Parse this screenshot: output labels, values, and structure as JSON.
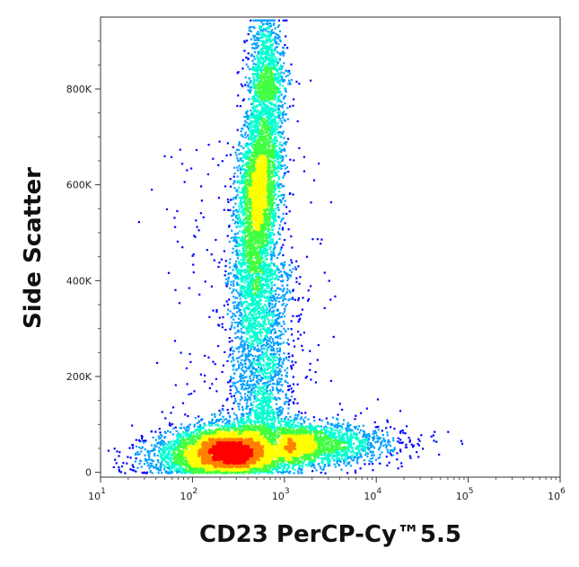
{
  "chart_data": {
    "type": "scatter",
    "subtype": "flow-cytometry density dot plot",
    "xlabel": "CD23 PerCP-Cy™5.5",
    "ylabel": "Side Scatter",
    "x_scale": "log",
    "xlim": [
      10,
      1000000
    ],
    "ylim": [
      -10000,
      950000
    ],
    "x_ticks": [
      {
        "value": 10,
        "base": "10",
        "exp": "1"
      },
      {
        "value": 100,
        "base": "10",
        "exp": "2"
      },
      {
        "value": 1000,
        "base": "10",
        "exp": "3"
      },
      {
        "value": 10000,
        "base": "10",
        "exp": "4"
      },
      {
        "value": 100000,
        "base": "10",
        "exp": "5"
      },
      {
        "value": 1000000,
        "base": "10",
        "exp": "6"
      }
    ],
    "y_ticks": [
      {
        "value": 0,
        "label": "0"
      },
      {
        "value": 200000,
        "label": "200K"
      },
      {
        "value": 400000,
        "label": "400K"
      },
      {
        "value": 600000,
        "label": "600K"
      },
      {
        "value": 800000,
        "label": "800K"
      }
    ],
    "populations": [
      {
        "name": "CD23-negative low SSC cluster",
        "x_center": 250,
        "y_center": 40000,
        "density": "highest"
      },
      {
        "name": "high SSC cluster",
        "x_center": 550,
        "y_center": 580000,
        "density": "medium"
      },
      {
        "name": "CD23-positive low SSC tail",
        "x_center": 3000,
        "y_center": 60000,
        "density": "low"
      }
    ],
    "color_scale": [
      "#0000ff",
      "#00a0ff",
      "#00ffd0",
      "#40ff40",
      "#ffff00",
      "#ff8000",
      "#ff0000"
    ],
    "grid": false,
    "legend": "none"
  }
}
